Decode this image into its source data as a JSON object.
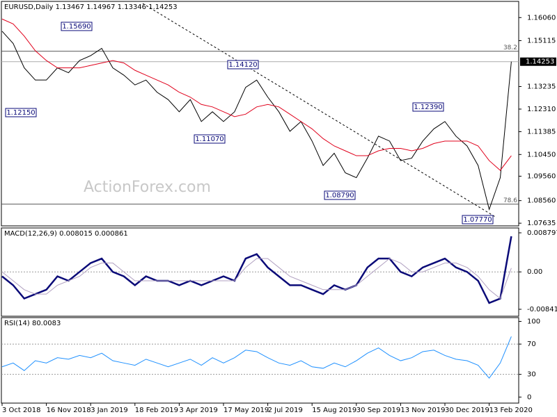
{
  "chart_data": [
    {
      "type": "line",
      "title": "EURUSD,Daily  1.13467 1.14967 1.13346 1.14253",
      "watermark": "ActionForex.com",
      "ylim": [
        1.07525,
        1.16723
      ],
      "yticks": [
        {
          "value": 1.1606,
          "label": "1.16060"
        },
        1.15115,
        1.13235,
        {
          "value": 1.1231,
          "label": "1.12310"
        },
        1.11385,
        {
          "value": 1.1045,
          "label": "1.10450"
        },
        {
          "value": 1.0956,
          "label": "1.09560"
        },
        {
          "value": 1.0856,
          "label": "1.08560"
        },
        1.07635
      ],
      "last_price": {
        "value": 1.14253,
        "label": "1.14253"
      },
      "levels": [
        {
          "value": 1.1468,
          "label": "38.2"
        },
        {
          "value": 1.08415,
          "label": "78.6"
        }
      ],
      "annotations": [
        "1.15690",
        "1.14120",
        "1.12150",
        "1.11070",
        "1.08790",
        "1.07770",
        "1.12390"
      ],
      "series": [
        {
          "name": "EURUSD",
          "color": "#000000",
          "values": [
            1.155,
            1.15,
            1.14,
            1.135,
            1.135,
            1.14,
            1.138,
            1.143,
            1.145,
            1.148,
            1.14,
            1.137,
            1.133,
            1.135,
            1.13,
            1.127,
            1.122,
            1.127,
            1.118,
            1.122,
            1.118,
            1.122,
            1.132,
            1.135,
            1.128,
            1.122,
            1.114,
            1.118,
            1.11,
            1.1,
            1.105,
            1.097,
            1.095,
            1.103,
            1.112,
            1.11,
            1.102,
            1.103,
            1.11,
            1.115,
            1.118,
            1.112,
            1.108,
            1.1,
            1.082,
            1.095,
            1.14253
          ]
        },
        {
          "name": "MA",
          "color": "#e0001b",
          "values": [
            1.16,
            1.158,
            1.153,
            1.147,
            1.143,
            1.14,
            1.14,
            1.14,
            1.141,
            1.142,
            1.143,
            1.142,
            1.139,
            1.137,
            1.135,
            1.133,
            1.13,
            1.128,
            1.125,
            1.124,
            1.122,
            1.12,
            1.121,
            1.124,
            1.125,
            1.124,
            1.121,
            1.118,
            1.115,
            1.111,
            1.108,
            1.106,
            1.104,
            1.104,
            1.106,
            1.107,
            1.107,
            1.106,
            1.107,
            1.109,
            1.11,
            1.11,
            1.11,
            1.108,
            1.102,
            1.098,
            1.104
          ]
        }
      ]
    },
    {
      "type": "line",
      "title": "MACD(12,26,9) 0.008015 0.000861",
      "ylim": [
        -0.00998,
        0.00989
      ],
      "yticks": [
        0.008797,
        {
          "value": 0,
          "label": "0.00"
        },
        -0.008417
      ],
      "levels": [
        {
          "value": 0,
          "label": "0.00"
        }
      ],
      "series": [
        {
          "name": "MACD",
          "color": "#0a0a78",
          "values": [
            -0.001,
            -0.003,
            -0.006,
            -0.005,
            -0.004,
            -0.001,
            -0.002,
            0.0,
            0.002,
            0.003,
            0.0,
            -0.001,
            -0.003,
            -0.001,
            -0.002,
            -0.002,
            -0.003,
            -0.002,
            -0.003,
            -0.002,
            -0.001,
            -0.002,
            0.003,
            0.004,
            0.001,
            -0.001,
            -0.003,
            -0.003,
            -0.004,
            -0.005,
            -0.003,
            -0.004,
            -0.003,
            0.001,
            0.003,
            0.003,
            0.0,
            -0.001,
            0.001,
            0.002,
            0.003,
            0.001,
            0.0,
            -0.002,
            -0.007,
            -0.006,
            0.008015
          ]
        },
        {
          "name": "Signal",
          "color": "#b0a0c0",
          "values": [
            0.0,
            -0.002,
            -0.004,
            -0.005,
            -0.005,
            -0.003,
            -0.002,
            -0.001,
            0.001,
            0.002,
            0.002,
            0.0,
            -0.002,
            -0.002,
            -0.002,
            -0.002,
            -0.002,
            -0.002,
            -0.002,
            -0.002,
            -0.002,
            -0.002,
            0.001,
            0.003,
            0.003,
            0.001,
            -0.001,
            -0.002,
            -0.003,
            -0.004,
            -0.004,
            -0.004,
            -0.003,
            -0.001,
            0.001,
            0.003,
            0.002,
            0.0,
            0.0,
            0.001,
            0.002,
            0.002,
            0.001,
            -0.001,
            -0.004,
            -0.006,
            0.000861
          ]
        }
      ]
    },
    {
      "type": "line",
      "title": "RSI(14) 80.0083",
      "ylim": [
        -8,
        105
      ],
      "yticks": [
        100,
        70,
        30,
        0
      ],
      "levels": [
        {
          "value": 70,
          "label": "70"
        },
        {
          "value": 30,
          "label": "30"
        }
      ],
      "categories": [
        "3 Oct 2018",
        null,
        null,
        null,
        "16 Nov 2018",
        null,
        null,
        null,
        "3 Jan 2019",
        null,
        null,
        null,
        "18 Feb 2019",
        null,
        null,
        null,
        "3 Apr 2019",
        null,
        null,
        null,
        "17 May 2019",
        null,
        null,
        null,
        "2 Jul 2019",
        null,
        null,
        null,
        "15 Aug 2019",
        null,
        null,
        null,
        "30 Sep 2019",
        null,
        null,
        null,
        "13 Nov 2019",
        null,
        null,
        null,
        "30 Dec 2019",
        null,
        null,
        null,
        "13 Feb 2020",
        null,
        null
      ],
      "series": [
        {
          "name": "RSI",
          "color": "#1e90ff",
          "values": [
            40,
            45,
            35,
            48,
            45,
            52,
            50,
            55,
            52,
            58,
            48,
            45,
            42,
            50,
            45,
            40,
            45,
            50,
            42,
            52,
            45,
            52,
            62,
            60,
            52,
            45,
            42,
            48,
            40,
            38,
            45,
            40,
            48,
            58,
            65,
            55,
            48,
            52,
            60,
            62,
            55,
            50,
            48,
            42,
            25,
            45,
            80.0083
          ]
        }
      ]
    }
  ]
}
